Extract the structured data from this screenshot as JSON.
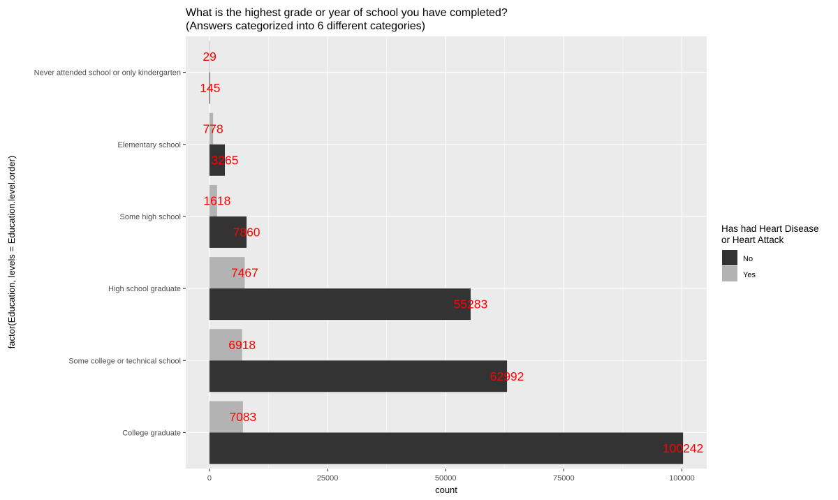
{
  "chart_data": {
    "type": "bar",
    "orientation": "horizontal",
    "title": [
      "What is the highest grade or year of school you have completed?",
      "(Answers categorized into 6 different categories)"
    ],
    "xlabel": "count",
    "ylabel": "factor(Education, levels = Education.level.order)",
    "categories": [
      "Never attended school or only kindergarten",
      "Elementary school",
      "Some high school",
      "High school graduate",
      "Some college or technical school",
      "College graduate"
    ],
    "series": [
      {
        "name": "No",
        "values": [
          145,
          3265,
          7860,
          55283,
          62992,
          100242
        ],
        "color": "#333333"
      },
      {
        "name": "Yes",
        "values": [
          29,
          778,
          1618,
          7467,
          6918,
          7083
        ],
        "color": "#b3b3b3"
      }
    ],
    "xlim": [
      -5012,
      105254
    ],
    "xticks": [
      0,
      25000,
      50000,
      75000,
      100000
    ],
    "xtick_labels": [
      "0",
      "25000",
      "50000",
      "75000",
      "100000"
    ],
    "grid": true,
    "panel_background": "#ebebeb",
    "data_label_color": "#ff0000",
    "legend": {
      "title": [
        "Has had Heart Disease",
        "or Heart Attack"
      ],
      "entries": [
        "No",
        "Yes"
      ],
      "placement": "right"
    }
  }
}
